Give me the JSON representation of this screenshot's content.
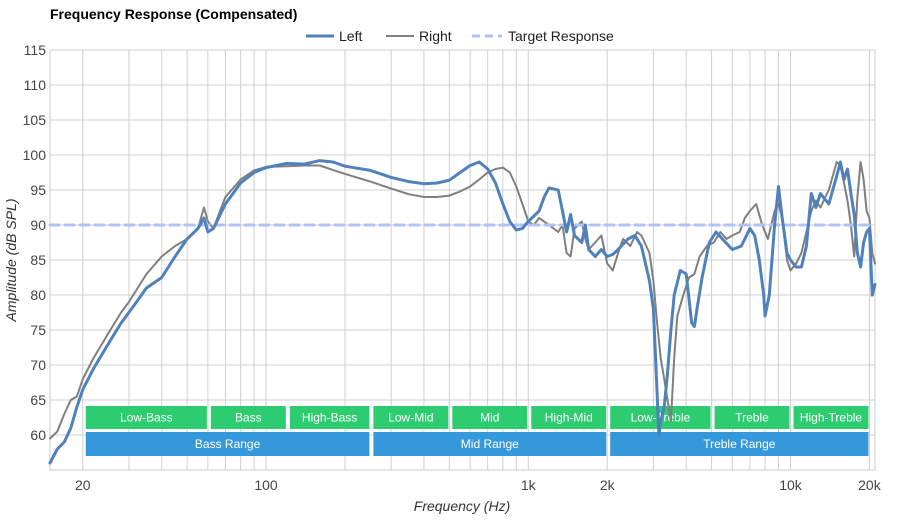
{
  "chart_data": {
    "type": "line",
    "title": "Frequency Response (Compensated)",
    "xlabel": "Frequency (Hz)",
    "ylabel": "Amplitude (dB SPL)",
    "x_scale": "log",
    "xlim": [
      15,
      21000
    ],
    "ylim": [
      55,
      115
    ],
    "x_ticks": [
      {
        "value": 20,
        "label": "20"
      },
      {
        "value": 100,
        "label": "100"
      },
      {
        "value": 1000,
        "label": "1k"
      },
      {
        "value": 2000,
        "label": "2k"
      },
      {
        "value": 10000,
        "label": "10k"
      },
      {
        "value": 20000,
        "label": "20k"
      }
    ],
    "y_ticks": [
      60,
      65,
      70,
      75,
      80,
      85,
      90,
      95,
      100,
      105,
      110,
      115
    ],
    "grid": true,
    "legend_position": "top-center",
    "series": [
      {
        "name": "Left",
        "color": "#4f81bd",
        "style": "solid",
        "points": [
          [
            15,
            56.0
          ],
          [
            16,
            58.0
          ],
          [
            17,
            59.0
          ],
          [
            18,
            61.0
          ],
          [
            19,
            64.0
          ],
          [
            20,
            66.5
          ],
          [
            22,
            69.5
          ],
          [
            25,
            73.0
          ],
          [
            28,
            76.0
          ],
          [
            30,
            77.5
          ],
          [
            35,
            81.0
          ],
          [
            40,
            82.5
          ],
          [
            45,
            85.5
          ],
          [
            50,
            88.0
          ],
          [
            55,
            89.5
          ],
          [
            58,
            91.0
          ],
          [
            60,
            89.0
          ],
          [
            63,
            89.5
          ],
          [
            70,
            93.0
          ],
          [
            80,
            96.0
          ],
          [
            90,
            97.5
          ],
          [
            100,
            98.2
          ],
          [
            120,
            98.8
          ],
          [
            140,
            98.7
          ],
          [
            160,
            99.2
          ],
          [
            180,
            99.0
          ],
          [
            200,
            98.4
          ],
          [
            250,
            97.8
          ],
          [
            300,
            96.8
          ],
          [
            350,
            96.2
          ],
          [
            400,
            95.9
          ],
          [
            450,
            96.0
          ],
          [
            500,
            96.4
          ],
          [
            550,
            97.5
          ],
          [
            600,
            98.5
          ],
          [
            650,
            99.0
          ],
          [
            700,
            98.0
          ],
          [
            750,
            96.0
          ],
          [
            800,
            93.0
          ],
          [
            850,
            90.5
          ],
          [
            900,
            89.3
          ],
          [
            950,
            89.5
          ],
          [
            1000,
            90.5
          ],
          [
            1100,
            92.0
          ],
          [
            1150,
            94.0
          ],
          [
            1200,
            95.3
          ],
          [
            1300,
            95.0
          ],
          [
            1350,
            92.0
          ],
          [
            1400,
            89.0
          ],
          [
            1450,
            91.5
          ],
          [
            1500,
            88.5
          ],
          [
            1600,
            87.5
          ],
          [
            1650,
            90.0
          ],
          [
            1700,
            86.5
          ],
          [
            1800,
            85.5
          ],
          [
            1900,
            86.5
          ],
          [
            2000,
            85.5
          ],
          [
            2100,
            85.8
          ],
          [
            2200,
            86.5
          ],
          [
            2400,
            88.0
          ],
          [
            2550,
            88.5
          ],
          [
            2700,
            87.0
          ],
          [
            2900,
            82.0
          ],
          [
            3000,
            78.0
          ],
          [
            3100,
            66.0
          ],
          [
            3150,
            60.0
          ],
          [
            3200,
            62.0
          ],
          [
            3300,
            64.0
          ],
          [
            3400,
            69.0
          ],
          [
            3500,
            75.0
          ],
          [
            3600,
            80.0
          ],
          [
            3800,
            83.5
          ],
          [
            4000,
            83.0
          ],
          [
            4200,
            76.0
          ],
          [
            4300,
            75.5
          ],
          [
            4400,
            78.0
          ],
          [
            4600,
            82.5
          ],
          [
            4900,
            87.5
          ],
          [
            5200,
            89.0
          ],
          [
            5500,
            88.0
          ],
          [
            6000,
            86.5
          ],
          [
            6500,
            87.0
          ],
          [
            7000,
            89.5
          ],
          [
            7300,
            88.5
          ],
          [
            7600,
            85.0
          ],
          [
            7900,
            80.0
          ],
          [
            8000,
            77.0
          ],
          [
            8300,
            80.0
          ],
          [
            8700,
            90.0
          ],
          [
            9000,
            95.5
          ],
          [
            9300,
            91.0
          ],
          [
            9700,
            86.0
          ],
          [
            10000,
            85.0
          ],
          [
            10500,
            84.0
          ],
          [
            11000,
            84.0
          ],
          [
            11500,
            87.0
          ],
          [
            12000,
            94.5
          ],
          [
            12500,
            92.5
          ],
          [
            13000,
            94.5
          ],
          [
            14000,
            93.0
          ],
          [
            15000,
            97.0
          ],
          [
            15500,
            99.0
          ],
          [
            16000,
            96.5
          ],
          [
            16500,
            98.0
          ],
          [
            17000,
            94.5
          ],
          [
            17500,
            91.5
          ],
          [
            18000,
            86.0
          ],
          [
            18500,
            84.0
          ],
          [
            19000,
            87.5
          ],
          [
            19500,
            89.0
          ],
          [
            20000,
            89.5
          ],
          [
            20500,
            80.0
          ],
          [
            21000,
            81.5
          ]
        ]
      },
      {
        "name": "Right",
        "color": "#7f7f7f",
        "style": "solid",
        "points": [
          [
            15,
            59.5
          ],
          [
            16,
            60.5
          ],
          [
            17,
            63.0
          ],
          [
            18,
            65.0
          ],
          [
            19,
            65.5
          ],
          [
            20,
            68.0
          ],
          [
            22,
            71.0
          ],
          [
            25,
            74.5
          ],
          [
            28,
            77.5
          ],
          [
            30,
            79.0
          ],
          [
            35,
            83.0
          ],
          [
            40,
            85.5
          ],
          [
            45,
            87.0
          ],
          [
            50,
            88.0
          ],
          [
            55,
            89.5
          ],
          [
            58,
            92.5
          ],
          [
            60,
            90.5
          ],
          [
            63,
            89.5
          ],
          [
            70,
            94.0
          ],
          [
            80,
            96.5
          ],
          [
            90,
            97.8
          ],
          [
            100,
            98.3
          ],
          [
            120,
            98.4
          ],
          [
            140,
            98.5
          ],
          [
            160,
            98.5
          ],
          [
            200,
            97.3
          ],
          [
            250,
            96.2
          ],
          [
            300,
            95.2
          ],
          [
            350,
            94.4
          ],
          [
            400,
            94.0
          ],
          [
            450,
            94.0
          ],
          [
            500,
            94.2
          ],
          [
            550,
            94.8
          ],
          [
            600,
            95.5
          ],
          [
            650,
            96.5
          ],
          [
            700,
            97.5
          ],
          [
            750,
            98.0
          ],
          [
            800,
            98.2
          ],
          [
            850,
            97.5
          ],
          [
            900,
            95.5
          ],
          [
            950,
            93.0
          ],
          [
            1000,
            90.5
          ],
          [
            1050,
            90.0
          ],
          [
            1100,
            91.0
          ],
          [
            1200,
            90.0
          ],
          [
            1300,
            89.0
          ],
          [
            1350,
            90.0
          ],
          [
            1400,
            86.0
          ],
          [
            1450,
            85.5
          ],
          [
            1500,
            89.5
          ],
          [
            1600,
            90.5
          ],
          [
            1650,
            88.0
          ],
          [
            1700,
            86.5
          ],
          [
            1800,
            87.5
          ],
          [
            1900,
            88.5
          ],
          [
            2000,
            84.5
          ],
          [
            2100,
            83.5
          ],
          [
            2200,
            86.0
          ],
          [
            2300,
            88.0
          ],
          [
            2450,
            87.0
          ],
          [
            2600,
            89.0
          ],
          [
            2700,
            88.5
          ],
          [
            2900,
            86.0
          ],
          [
            3000,
            82.0
          ],
          [
            3100,
            76.0
          ],
          [
            3200,
            71.0
          ],
          [
            3300,
            68.0
          ],
          [
            3400,
            65.0
          ],
          [
            3500,
            62.0
          ],
          [
            3600,
            71.0
          ],
          [
            3700,
            77.0
          ],
          [
            3900,
            80.0
          ],
          [
            4100,
            82.5
          ],
          [
            4300,
            83.0
          ],
          [
            4500,
            85.5
          ],
          [
            4800,
            87.0
          ],
          [
            5100,
            87.5
          ],
          [
            5400,
            89.0
          ],
          [
            5700,
            88.0
          ],
          [
            6000,
            88.5
          ],
          [
            6400,
            89.0
          ],
          [
            6700,
            91.0
          ],
          [
            7000,
            92.0
          ],
          [
            7400,
            93.0
          ],
          [
            7800,
            90.0
          ],
          [
            8200,
            88.0
          ],
          [
            8700,
            92.0
          ],
          [
            9000,
            93.0
          ],
          [
            9300,
            91.0
          ],
          [
            9700,
            85.0
          ],
          [
            10000,
            83.5
          ],
          [
            10500,
            84.5
          ],
          [
            11000,
            86.0
          ],
          [
            11500,
            89.0
          ],
          [
            12000,
            92.0
          ],
          [
            12500,
            93.5
          ],
          [
            13000,
            92.5
          ],
          [
            14000,
            95.0
          ],
          [
            15000,
            99.0
          ],
          [
            15500,
            98.5
          ],
          [
            16000,
            96.0
          ],
          [
            16500,
            93.5
          ],
          [
            17000,
            90.0
          ],
          [
            17500,
            85.5
          ],
          [
            18000,
            94.0
          ],
          [
            18500,
            99.0
          ],
          [
            19000,
            96.5
          ],
          [
            19500,
            92.0
          ],
          [
            20000,
            91.0
          ],
          [
            20500,
            86.0
          ],
          [
            21000,
            84.5
          ]
        ]
      },
      {
        "name": "Target Response",
        "color": "#aec3f7",
        "style": "dashed",
        "points": [
          [
            15,
            90
          ],
          [
            21000,
            90
          ]
        ]
      }
    ],
    "bands": [
      {
        "label": "Low-Bass",
        "from": 20,
        "to": 60,
        "color": "#2ecc71",
        "row": 1
      },
      {
        "label": "Bass",
        "from": 60,
        "to": 120,
        "color": "#2ecc71",
        "row": 1
      },
      {
        "label": "High-Bass",
        "from": 120,
        "to": 250,
        "color": "#2ecc71",
        "row": 1
      },
      {
        "label": "Low-Mid",
        "from": 250,
        "to": 500,
        "color": "#2ecc71",
        "row": 1
      },
      {
        "label": "Mid",
        "from": 500,
        "to": 1000,
        "color": "#2ecc71",
        "row": 1
      },
      {
        "label": "High-Mid",
        "from": 1000,
        "to": 2000,
        "color": "#2ecc71",
        "row": 1
      },
      {
        "label": "Low-Treble",
        "from": 2000,
        "to": 5000,
        "color": "#2ecc71",
        "row": 1
      },
      {
        "label": "Treble",
        "from": 5000,
        "to": 10000,
        "color": "#2ecc71",
        "row": 1
      },
      {
        "label": "High-Treble",
        "from": 10000,
        "to": 20000,
        "color": "#2ecc71",
        "row": 1
      },
      {
        "label": "Bass Range",
        "from": 20,
        "to": 250,
        "color": "#3498db",
        "row": 2
      },
      {
        "label": "Mid Range",
        "from": 250,
        "to": 2000,
        "color": "#3498db",
        "row": 2
      },
      {
        "label": "Treble Range",
        "from": 2000,
        "to": 20000,
        "color": "#3498db",
        "row": 2
      }
    ]
  }
}
